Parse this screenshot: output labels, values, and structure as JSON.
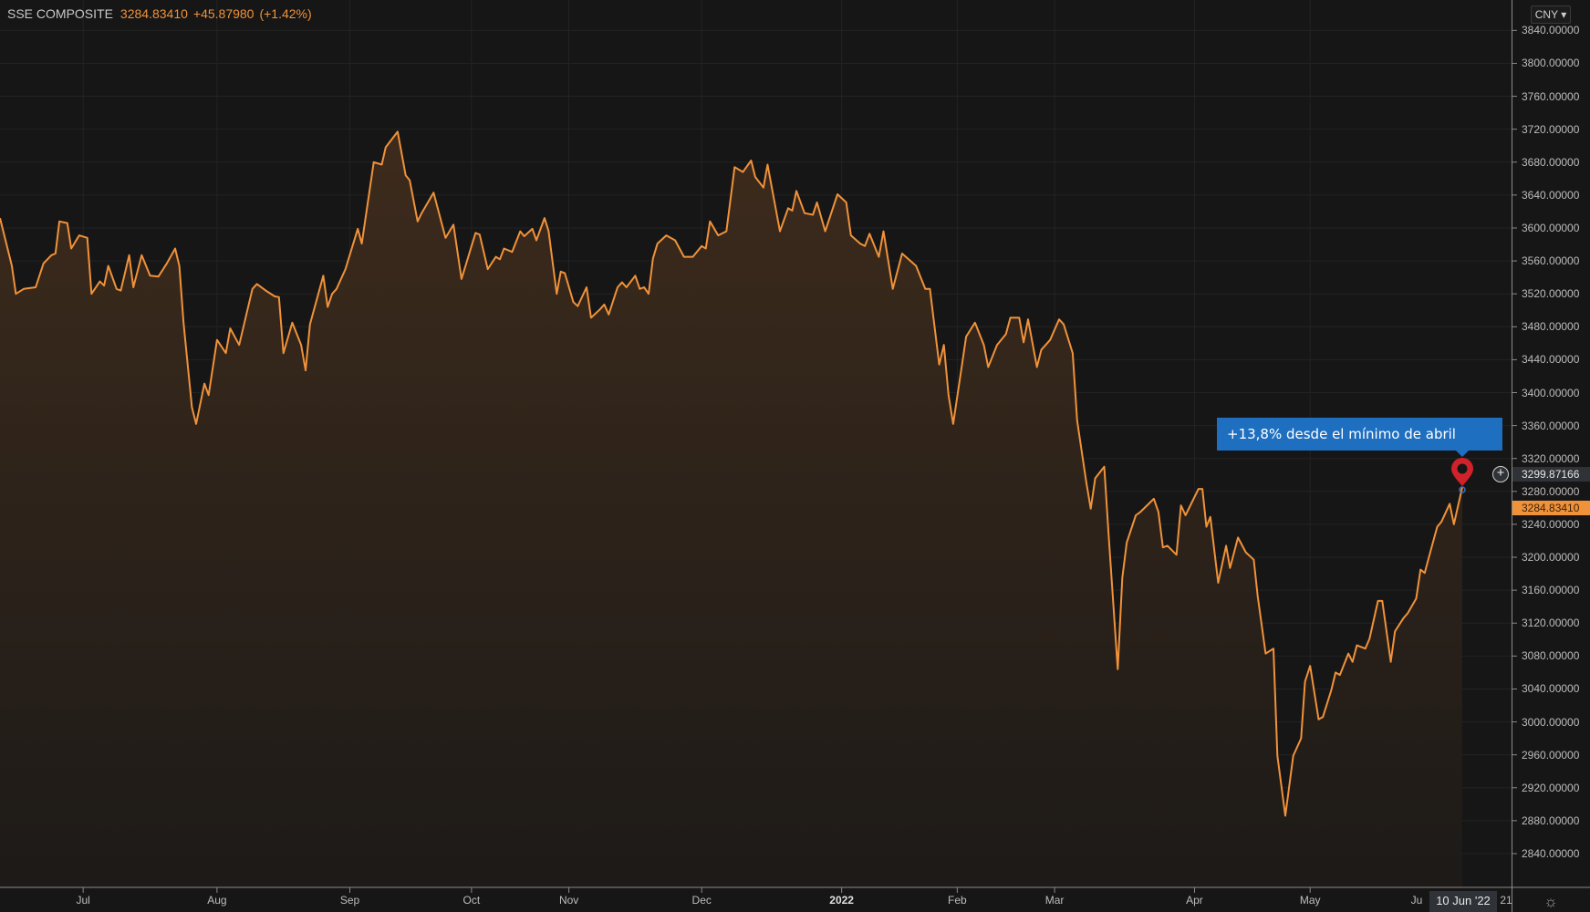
{
  "header": {
    "symbol": "SSE COMPOSITE",
    "last": "3284.83410",
    "change": "+45.87980",
    "change_pct": "(+1.42%)"
  },
  "currency": "CNY ▾",
  "annotation": {
    "text": "+13,8% desde el mínimo de abril",
    "color": "#1f6fc0",
    "marker_color": "#d0222a",
    "marker_icon": "map-pin-icon"
  },
  "price_labels": {
    "crosshair": "3299.87166",
    "last": "3284.83410"
  },
  "crosshair_date": "10 Jun '22",
  "partial_x_labels": {
    "left": "Ju",
    "right": "21"
  },
  "icons": {
    "add": "plus-circle-icon",
    "settings": "gear-icon"
  },
  "colors": {
    "line": "#f0923a",
    "background": "#161616",
    "fill": "#3a2a1e"
  },
  "chart_data": {
    "type": "area",
    "title": "SSE COMPOSITE",
    "grid": true,
    "ylim": [
      2820,
      3860
    ],
    "y_ticks": [
      "3840.00000",
      "3800.00000",
      "3760.00000",
      "3720.00000",
      "3680.00000",
      "3640.00000",
      "3600.00000",
      "3560.00000",
      "3520.00000",
      "3480.00000",
      "3440.00000",
      "3400.00000",
      "3360.00000",
      "3320.00000",
      "3280.00000",
      "3240.00000",
      "3200.00000",
      "3160.00000",
      "3120.00000",
      "3080.00000",
      "3040.00000",
      "3000.00000",
      "2960.00000",
      "2920.00000",
      "2880.00000",
      "2840.00000"
    ],
    "x_ticks": [
      {
        "label": "Jul",
        "date": "2021-07-01"
      },
      {
        "label": "Aug",
        "date": "2021-08-02"
      },
      {
        "label": "Sep",
        "date": "2021-09-01"
      },
      {
        "label": "Oct",
        "date": "2021-10-08"
      },
      {
        "label": "Nov",
        "date": "2021-11-01"
      },
      {
        "label": "Dec",
        "date": "2021-12-01"
      },
      {
        "label": "2022",
        "date": "2022-01-04",
        "bold": true
      },
      {
        "label": "Feb",
        "date": "2022-02-07"
      },
      {
        "label": "Mar",
        "date": "2022-03-01"
      },
      {
        "label": "Apr",
        "date": "2022-04-01"
      },
      {
        "label": "May",
        "date": "2022-05-05"
      }
    ],
    "series": [
      {
        "points": [
          [
            "2021-06-10",
            3612
          ],
          [
            "2021-06-13",
            3554
          ],
          [
            "2021-06-14",
            3520
          ],
          [
            "2021-06-16",
            3526
          ],
          [
            "2021-06-19",
            3528
          ],
          [
            "2021-06-21",
            3557
          ],
          [
            "2021-06-23",
            3567
          ],
          [
            "2021-06-24",
            3569
          ],
          [
            "2021-06-25",
            3608
          ],
          [
            "2021-06-27",
            3606
          ],
          [
            "2021-06-28",
            3575
          ],
          [
            "2021-06-30",
            3591
          ],
          [
            "2021-07-02",
            3588
          ],
          [
            "2021-07-03",
            3520
          ],
          [
            "2021-07-05",
            3535
          ],
          [
            "2021-07-06",
            3530
          ],
          [
            "2021-07-07",
            3554
          ],
          [
            "2021-07-09",
            3526
          ],
          [
            "2021-07-10",
            3524
          ],
          [
            "2021-07-12",
            3567
          ],
          [
            "2021-07-13",
            3528
          ],
          [
            "2021-07-15",
            3567
          ],
          [
            "2021-07-17",
            3542
          ],
          [
            "2021-07-19",
            3541
          ],
          [
            "2021-07-21",
            3557
          ],
          [
            "2021-07-23",
            3575
          ],
          [
            "2021-07-24",
            3554
          ],
          [
            "2021-07-25",
            3485
          ],
          [
            "2021-07-27",
            3382
          ],
          [
            "2021-07-28",
            3362
          ],
          [
            "2021-07-30",
            3411
          ],
          [
            "2021-07-31",
            3397
          ],
          [
            "2021-08-02",
            3464
          ],
          [
            "2021-08-04",
            3448
          ],
          [
            "2021-08-05",
            3478
          ],
          [
            "2021-08-07",
            3458
          ],
          [
            "2021-08-10",
            3526
          ],
          [
            "2021-08-11",
            3532
          ],
          [
            "2021-08-13",
            3524
          ],
          [
            "2021-08-15",
            3517
          ],
          [
            "2021-08-16",
            3516
          ],
          [
            "2021-08-17",
            3448
          ],
          [
            "2021-08-19",
            3485
          ],
          [
            "2021-08-21",
            3458
          ],
          [
            "2021-08-22",
            3427
          ],
          [
            "2021-08-23",
            3483
          ],
          [
            "2021-08-26",
            3542
          ],
          [
            "2021-08-27",
            3504
          ],
          [
            "2021-08-28",
            3520
          ],
          [
            "2021-08-29",
            3526
          ],
          [
            "2021-08-31",
            3550
          ],
          [
            "2021-09-03",
            3599
          ],
          [
            "2021-09-04",
            3581
          ],
          [
            "2021-09-07",
            3680
          ],
          [
            "2021-09-09",
            3677
          ],
          [
            "2021-09-10",
            3698
          ],
          [
            "2021-09-13",
            3717
          ],
          [
            "2021-09-15",
            3664
          ],
          [
            "2021-09-16",
            3658
          ],
          [
            "2021-09-18",
            3608
          ],
          [
            "2021-09-19",
            3618
          ],
          [
            "2021-09-22",
            3643
          ],
          [
            "2021-09-25",
            3588
          ],
          [
            "2021-09-27",
            3604
          ],
          [
            "2021-09-29",
            3538
          ],
          [
            "2021-10-09",
            3594
          ],
          [
            "2021-10-10",
            3592
          ],
          [
            "2021-10-12",
            3550
          ],
          [
            "2021-10-14",
            3565
          ],
          [
            "2021-10-15",
            3562
          ],
          [
            "2021-10-16",
            3575
          ],
          [
            "2021-10-18",
            3571
          ],
          [
            "2021-10-20",
            3596
          ],
          [
            "2021-10-21",
            3590
          ],
          [
            "2021-10-23",
            3599
          ],
          [
            "2021-10-24",
            3585
          ],
          [
            "2021-10-26",
            3612
          ],
          [
            "2021-10-27",
            3596
          ],
          [
            "2021-10-29",
            3520
          ],
          [
            "2021-10-30",
            3547
          ],
          [
            "2021-10-31",
            3545
          ],
          [
            "2021-11-02",
            3510
          ],
          [
            "2021-11-03",
            3505
          ],
          [
            "2021-11-05",
            3528
          ],
          [
            "2021-11-06",
            3491
          ],
          [
            "2021-11-08",
            3501
          ],
          [
            "2021-11-09",
            3507
          ],
          [
            "2021-11-10",
            3495
          ],
          [
            "2021-11-12",
            3528
          ],
          [
            "2021-11-13",
            3534
          ],
          [
            "2021-11-14",
            3528
          ],
          [
            "2021-11-16",
            3542
          ],
          [
            "2021-11-17",
            3526
          ],
          [
            "2021-11-18",
            3528
          ],
          [
            "2021-11-19",
            3520
          ],
          [
            "2021-11-20",
            3563
          ],
          [
            "2021-11-21",
            3581
          ],
          [
            "2021-11-23",
            3591
          ],
          [
            "2021-11-25",
            3585
          ],
          [
            "2021-11-27",
            3565
          ],
          [
            "2021-11-29",
            3565
          ],
          [
            "2021-12-01",
            3578
          ],
          [
            "2021-12-02",
            3575
          ],
          [
            "2021-12-03",
            3608
          ],
          [
            "2021-12-05",
            3591
          ],
          [
            "2021-12-07",
            3596
          ],
          [
            "2021-12-09",
            3674
          ],
          [
            "2021-12-11",
            3668
          ],
          [
            "2021-12-13",
            3682
          ],
          [
            "2021-12-14",
            3662
          ],
          [
            "2021-12-16",
            3649
          ],
          [
            "2021-12-17",
            3677
          ],
          [
            "2021-12-20",
            3596
          ],
          [
            "2021-12-22",
            3624
          ],
          [
            "2021-12-23",
            3621
          ],
          [
            "2021-12-24",
            3645
          ],
          [
            "2021-12-26",
            3618
          ],
          [
            "2021-12-28",
            3616
          ],
          [
            "2021-12-29",
            3631
          ],
          [
            "2021-12-31",
            3596
          ],
          [
            "2022-01-03",
            3641
          ],
          [
            "2022-01-05",
            3631
          ],
          [
            "2022-01-06",
            3591
          ],
          [
            "2022-01-08",
            3581
          ],
          [
            "2022-01-09",
            3578
          ],
          [
            "2022-01-10",
            3593
          ],
          [
            "2022-01-12",
            3565
          ],
          [
            "2022-01-13",
            3596
          ],
          [
            "2022-01-15",
            3526
          ],
          [
            "2022-01-17",
            3569
          ],
          [
            "2022-01-19",
            3559
          ],
          [
            "2022-01-20",
            3554
          ],
          [
            "2022-01-22",
            3526
          ],
          [
            "2022-01-23",
            3526
          ],
          [
            "2022-01-25",
            3434
          ],
          [
            "2022-01-26",
            3458
          ],
          [
            "2022-01-27",
            3397
          ],
          [
            "2022-01-28",
            3362
          ],
          [
            "2022-02-08",
            3431
          ],
          [
            "2022-02-09",
            3468
          ],
          [
            "2022-02-11",
            3485
          ],
          [
            "2022-02-13",
            3458
          ],
          [
            "2022-02-14",
            3431
          ],
          [
            "2022-02-16",
            3458
          ],
          [
            "2022-02-18",
            3471
          ],
          [
            "2022-02-19",
            3491
          ],
          [
            "2022-02-21",
            3491
          ],
          [
            "2022-02-22",
            3461
          ],
          [
            "2022-02-23",
            3489
          ],
          [
            "2022-02-25",
            3431
          ],
          [
            "2022-02-26",
            3452
          ],
          [
            "2022-02-28",
            3464
          ],
          [
            "2022-03-02",
            3489
          ],
          [
            "2022-03-03",
            3483
          ],
          [
            "2022-03-05",
            3448
          ],
          [
            "2022-03-06",
            3366
          ],
          [
            "2022-03-08",
            3292
          ],
          [
            "2022-03-09",
            3259
          ],
          [
            "2022-03-10",
            3296
          ],
          [
            "2022-03-12",
            3310
          ],
          [
            "2022-03-13",
            3224
          ],
          [
            "2022-03-15",
            3064
          ],
          [
            "2022-03-16",
            3175
          ],
          [
            "2022-03-17",
            3218
          ],
          [
            "2022-03-19",
            3251
          ],
          [
            "2022-03-20",
            3255
          ],
          [
            "2022-03-23",
            3271
          ],
          [
            "2022-03-24",
            3255
          ],
          [
            "2022-03-25",
            3212
          ],
          [
            "2022-03-26",
            3214
          ],
          [
            "2022-03-28",
            3203
          ],
          [
            "2022-03-29",
            3263
          ],
          [
            "2022-03-30",
            3251
          ],
          [
            "2022-04-02",
            3283
          ],
          [
            "2022-04-03",
            3283
          ],
          [
            "2022-04-04",
            3237
          ],
          [
            "2022-04-05",
            3249
          ],
          [
            "2022-04-07",
            3169
          ],
          [
            "2022-04-09",
            3214
          ],
          [
            "2022-04-10",
            3187
          ],
          [
            "2022-04-12",
            3224
          ],
          [
            "2022-04-14",
            3206
          ],
          [
            "2022-04-16",
            3197
          ],
          [
            "2022-04-17",
            3153
          ],
          [
            "2022-04-19",
            3083
          ],
          [
            "2022-04-21",
            3089
          ],
          [
            "2022-04-22",
            2959
          ],
          [
            "2022-04-24",
            2886
          ],
          [
            "2022-04-26",
            2959
          ],
          [
            "2022-04-28",
            2980
          ],
          [
            "2022-04-29",
            3049
          ],
          [
            "2022-05-05",
            3068
          ],
          [
            "2022-05-07",
            3003
          ],
          [
            "2022-05-08",
            3006
          ],
          [
            "2022-05-10",
            3039
          ],
          [
            "2022-05-11",
            3060
          ],
          [
            "2022-05-12",
            3057
          ],
          [
            "2022-05-14",
            3083
          ],
          [
            "2022-05-15",
            3073
          ],
          [
            "2022-05-16",
            3093
          ],
          [
            "2022-05-18",
            3089
          ],
          [
            "2022-05-19",
            3101
          ],
          [
            "2022-05-21",
            3147
          ],
          [
            "2022-05-22",
            3147
          ],
          [
            "2022-05-24",
            3073
          ],
          [
            "2022-05-25",
            3110
          ],
          [
            "2022-05-27",
            3126
          ],
          [
            "2022-05-28",
            3132
          ],
          [
            "2022-05-30",
            3150
          ],
          [
            "2022-05-31",
            3185
          ],
          [
            "2022-06-01",
            3181
          ],
          [
            "2022-06-02",
            3200
          ],
          [
            "2022-06-04",
            3237
          ],
          [
            "2022-06-05",
            3243
          ],
          [
            "2022-06-07",
            3265
          ],
          [
            "2022-06-08",
            3240
          ],
          [
            "2022-06-10",
            3284.8341
          ]
        ]
      }
    ]
  }
}
